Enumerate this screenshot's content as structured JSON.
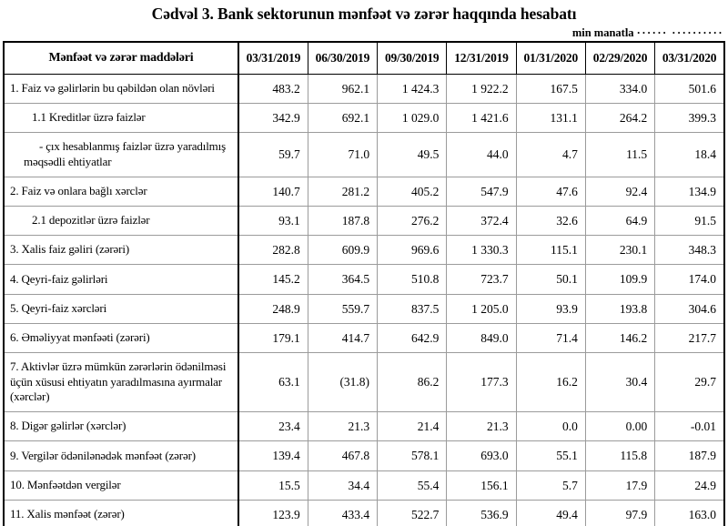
{
  "title": "Cədvəl 3. Bank sektorunun mənfəət və zərər haqqında hesabatı",
  "unit_note": {
    "label": "min manatla",
    "dots": "······ ··········"
  },
  "table": {
    "header": [
      "Mənfəət və zərər maddələri",
      "03/31/2019",
      "06/30/2019",
      "09/30/2019",
      "12/31/2019",
      "01/31/2020",
      "02/29/2020",
      "03/31/2020"
    ],
    "rows": [
      {
        "label": "1. Faiz və gəlirlərin bu qəbildən olan növləri",
        "indent": 0,
        "values": [
          "483.2",
          "962.1",
          "1 424.3",
          "1 922.2",
          "167.5",
          "334.0",
          "501.6"
        ]
      },
      {
        "label": "1.1 Kreditlər üzrə faizlər",
        "indent": 1,
        "values": [
          "342.9",
          "692.1",
          "1 029.0",
          "1 421.6",
          "131.1",
          "264.2",
          "399.3"
        ]
      },
      {
        "label": "-  çıx hesablanmış faizlər üzrə yaradılmış məqsədli ehtiyatlar",
        "indent": 2,
        "values": [
          "59.7",
          "71.0",
          "49.5",
          "44.0",
          "4.7",
          "11.5",
          "18.4"
        ]
      },
      {
        "label": "2. Faiz və onlara bağlı xərclər",
        "indent": 0,
        "values": [
          "140.7",
          "281.2",
          "405.2",
          "547.9",
          "47.6",
          "92.4",
          "134.9"
        ]
      },
      {
        "label": "2.1 depozitlər üzrə faizlər",
        "indent": 1,
        "values": [
          "93.1",
          "187.8",
          "276.2",
          "372.4",
          "32.6",
          "64.9",
          "91.5"
        ]
      },
      {
        "label": "3. Xalis faiz gəliri (zərəri)",
        "indent": 0,
        "values": [
          "282.8",
          "609.9",
          "969.6",
          "1 330.3",
          "115.1",
          "230.1",
          "348.3"
        ]
      },
      {
        "label": "4. Qeyri-faiz gəlirləri",
        "indent": 0,
        "values": [
          "145.2",
          "364.5",
          "510.8",
          "723.7",
          "50.1",
          "109.9",
          "174.0"
        ]
      },
      {
        "label": "5. Qeyri-faiz xərcləri",
        "indent": 0,
        "values": [
          "248.9",
          "559.7",
          "837.5",
          "1 205.0",
          "93.9",
          "193.8",
          "304.6"
        ]
      },
      {
        "label": "6. Əməliyyat mənfəəti (zərəri)",
        "indent": 0,
        "values": [
          "179.1",
          "414.7",
          "642.9",
          "849.0",
          "71.4",
          "146.2",
          "217.7"
        ]
      },
      {
        "label": "7. Aktivlər üzrə mümkün zərərlərin ödənilməsi üçün xüsusi ehtiyatın yaradılmasına ayırmalar (xərclər)",
        "indent": 0,
        "values": [
          "63.1",
          "(31.8)",
          "86.2",
          "177.3",
          "16.2",
          "30.4",
          "29.7"
        ]
      },
      {
        "label": "8. Digər gəlirlər (xərclər)",
        "indent": 0,
        "values": [
          "23.4",
          "21.3",
          "21.4",
          "21.3",
          "0.0",
          "0.00",
          "-0.01"
        ]
      },
      {
        "label": "9. Vergilər ödənilənədək mənfəət (zərər)",
        "indent": 0,
        "values": [
          "139.4",
          "467.8",
          "578.1",
          "693.0",
          "55.1",
          "115.8",
          "187.9"
        ]
      },
      {
        "label": "10. Mənfəətdən vergilər",
        "indent": 0,
        "values": [
          "15.5",
          "34.4",
          "55.4",
          "156.1",
          "5.7",
          "17.9",
          "24.9"
        ]
      },
      {
        "label": "11. Xalis mənfəət (zərər)",
        "indent": 0,
        "values": [
          "123.9",
          "433.4",
          "522.7",
          "536.9",
          "49.4",
          "97.9",
          "163.0"
        ]
      }
    ]
  },
  "colors": {
    "text": "#000000",
    "background": "#ffffff",
    "outer_border": "#000000",
    "grid_line": "#9b9b9b"
  }
}
